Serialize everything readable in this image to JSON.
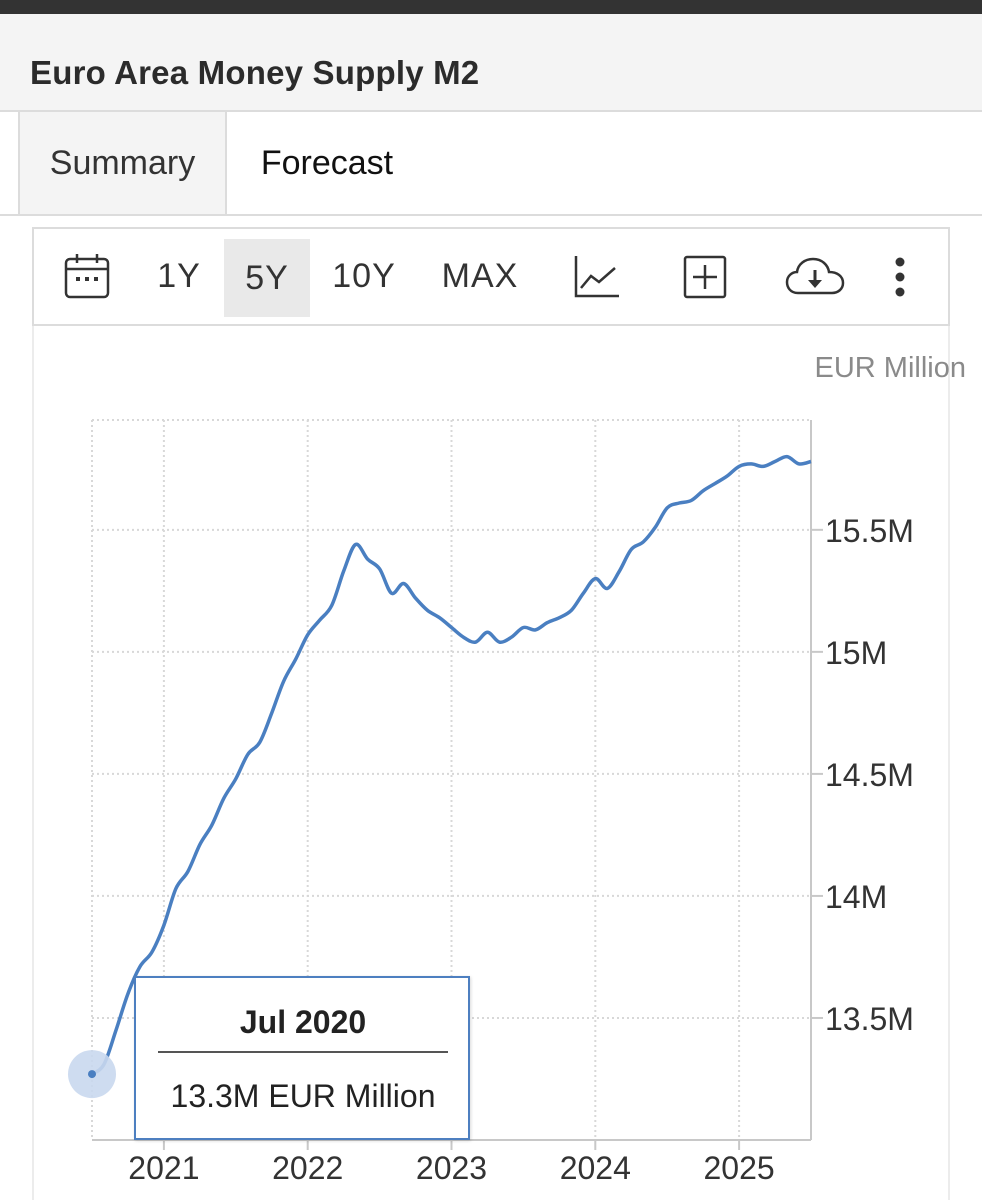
{
  "header": {
    "title": "Euro Area Money Supply M2"
  },
  "tabs": [
    {
      "label": "Summary"
    },
    {
      "label": "Forecast"
    }
  ],
  "toolbar": {
    "ranges": [
      {
        "label": "1Y"
      },
      {
        "label": "5Y"
      },
      {
        "label": "10Y"
      },
      {
        "label": "MAX"
      }
    ],
    "selected_range": "5Y",
    "icons": [
      "calendar-icon",
      "line-chart-icon",
      "plus-box-icon",
      "cloud-download-icon",
      "more-vertical-icon"
    ]
  },
  "tooltip": {
    "date": "Jul 2020",
    "value": "13.3M EUR Million"
  },
  "colors": {
    "line": "#4a7fc1",
    "marker": "#c9d8ee",
    "grid": "#d8d8d8"
  },
  "chart_data": {
    "type": "line",
    "ylabel": "EUR Million",
    "x_tick_labels": [
      "2021",
      "2022",
      "2023",
      "2024",
      "2025"
    ],
    "y_tick_labels": [
      "13.5M",
      "14M",
      "14.5M",
      "15M",
      "15.5M"
    ],
    "y_ticks": [
      13500000,
      14000000,
      14500000,
      15000000,
      15500000
    ],
    "ylim": [
      13000000,
      15950000
    ],
    "xlim": [
      "2020-07",
      "2025-07"
    ],
    "grid": true,
    "series": [
      {
        "x": [
          "2020-07",
          "2020-08",
          "2020-09",
          "2020-10",
          "2020-11",
          "2020-12",
          "2021-01",
          "2021-02",
          "2021-03",
          "2021-04",
          "2021-05",
          "2021-06",
          "2021-07",
          "2021-08",
          "2021-09",
          "2021-10",
          "2021-11",
          "2021-12",
          "2022-01",
          "2022-02",
          "2022-03",
          "2022-04",
          "2022-05",
          "2022-06",
          "2022-07",
          "2022-08",
          "2022-09",
          "2022-10",
          "2022-11",
          "2022-12",
          "2023-01",
          "2023-02",
          "2023-03",
          "2023-04",
          "2023-05",
          "2023-06",
          "2023-07",
          "2023-08",
          "2023-09",
          "2023-10",
          "2023-11",
          "2023-12",
          "2024-01",
          "2024-02",
          "2024-03",
          "2024-04",
          "2024-05",
          "2024-06",
          "2024-07",
          "2024-08",
          "2024-09",
          "2024-10",
          "2024-11",
          "2024-12",
          "2025-01",
          "2025-02",
          "2025-03",
          "2025-04",
          "2025-05",
          "2025-06",
          "2025-07"
        ],
        "values": [
          13270000,
          13310000,
          13450000,
          13600000,
          13710000,
          13770000,
          13880000,
          14030000,
          14100000,
          14210000,
          14290000,
          14400000,
          14480000,
          14580000,
          14630000,
          14750000,
          14880000,
          14970000,
          15070000,
          15130000,
          15190000,
          15330000,
          15440000,
          15380000,
          15340000,
          15240000,
          15280000,
          15220000,
          15170000,
          15140000,
          15100000,
          15060000,
          15040000,
          15080000,
          15040000,
          15060000,
          15100000,
          15090000,
          15120000,
          15140000,
          15170000,
          15240000,
          15300000,
          15260000,
          15330000,
          15420000,
          15450000,
          15510000,
          15590000,
          15610000,
          15620000,
          15660000,
          15690000,
          15720000,
          15760000,
          15770000,
          15760000,
          15780000,
          15800000,
          15770000,
          15780000
        ]
      }
    ]
  }
}
